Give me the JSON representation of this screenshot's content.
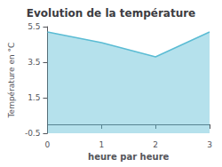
{
  "chart_data": {
    "type": "area",
    "title": "Evolution de la température",
    "xlabel": "heure par heure",
    "ylabel": "Température en °C",
    "x": [
      0,
      1,
      2,
      3
    ],
    "values": [
      5.2,
      4.6,
      3.8,
      5.2
    ],
    "color": "#5bbcd4",
    "xlim": [
      0,
      3
    ],
    "xticks": [
      0,
      1,
      2,
      3
    ],
    "ylim": [
      -0.5,
      5.5
    ],
    "yticks": [
      -0.5,
      1.5,
      3.5,
      5.5
    ],
    "grid": false
  }
}
